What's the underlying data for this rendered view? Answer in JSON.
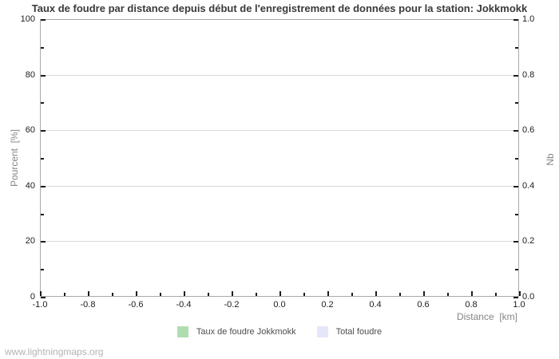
{
  "page": {
    "footer_link": "www.lightningmaps.org"
  },
  "chart_data": {
    "type": "bar",
    "title": "Taux de foudre par distance depuis début de l'enregistrement de données pour la station: Jokkmokk",
    "xlabel": "Distance  [km]",
    "ylabel_left": "Pourcent  [%]",
    "ylabel_right": "Nb",
    "xlim": [
      -1.0,
      1.0
    ],
    "ylim_left": [
      0,
      100
    ],
    "ylim_right": [
      0.0,
      1.0
    ],
    "x_ticks": [
      {
        "value": -1.0,
        "label": "-1.0"
      },
      {
        "value": -0.8,
        "label": "-0.8"
      },
      {
        "value": -0.6,
        "label": "-0.6"
      },
      {
        "value": -0.4,
        "label": "-0.4"
      },
      {
        "value": -0.2,
        "label": "-0.2"
      },
      {
        "value": 0.0,
        "label": "0.0"
      },
      {
        "value": 0.2,
        "label": "0.2"
      },
      {
        "value": 0.4,
        "label": "0.4"
      },
      {
        "value": 0.6,
        "label": "0.6"
      },
      {
        "value": 0.8,
        "label": "0.8"
      },
      {
        "value": 1.0,
        "label": "1.0"
      }
    ],
    "y_ticks_left": [
      {
        "value": 0,
        "label": "0"
      },
      {
        "value": 20,
        "label": "20"
      },
      {
        "value": 40,
        "label": "40"
      },
      {
        "value": 60,
        "label": "60"
      },
      {
        "value": 80,
        "label": "80"
      },
      {
        "value": 100,
        "label": "100"
      }
    ],
    "y_ticks_right": [
      {
        "value": 0.0,
        "label": "0.0"
      },
      {
        "value": 0.2,
        "label": "0.2"
      },
      {
        "value": 0.4,
        "label": "0.4"
      },
      {
        "value": 0.6,
        "label": "0.6"
      },
      {
        "value": 0.8,
        "label": "0.8"
      },
      {
        "value": 1.0,
        "label": "1.0"
      }
    ],
    "grid": "horizontal-only",
    "legend_position": "bottom-center",
    "series": [
      {
        "name": "Taux de foudre Jokkmokk",
        "color": "#b0ddb0",
        "values": []
      },
      {
        "name": "Total foudre",
        "color": "#e6e6fa",
        "values": []
      }
    ],
    "colors": {
      "grid": "#d9d9d9",
      "axis_frame": "#a9a9a9",
      "tick_mark": "#1c1c1c",
      "axis_title_text": "#858585",
      "title_text": "#3a3a3a",
      "legend_text": "#4d4d4d",
      "footer_text": "#b3b3b3"
    }
  }
}
